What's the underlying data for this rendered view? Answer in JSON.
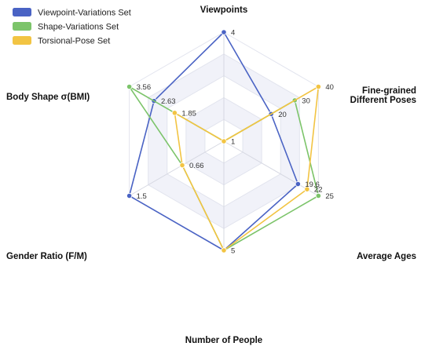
{
  "chart_data": {
    "type": "radar",
    "axes": [
      {
        "label": "Viewpoints",
        "label_lines": [
          "Viewpoints"
        ]
      },
      {
        "label": "Fine-grained Different Poses",
        "label_lines": [
          "Fine-grained",
          "Different Poses"
        ]
      },
      {
        "label": "Average Ages",
        "label_lines": [
          "Average Ages"
        ]
      },
      {
        "label": "Number of People",
        "label_lines": [
          "Number of People"
        ]
      },
      {
        "label": "Gender Ratio (F/M)",
        "label_lines": [
          "Gender Ratio (F/M)"
        ]
      },
      {
        "label": "Body Shape σ(BMI)",
        "label_lines": [
          "Body Shape σ(BMI)"
        ]
      }
    ],
    "series": [
      {
        "name": "Viewpoint-Variations Set",
        "color": "#4a63c4",
        "values": [
          1.0,
          0.5,
          0.784,
          1.0,
          1.0,
          0.739
        ],
        "labels": [
          "4",
          "20",
          "19.6",
          "5",
          "1.5",
          "2.63"
        ]
      },
      {
        "name": "Shape-Variations Set",
        "color": "#7cc46a",
        "values": [
          0.0,
          0.75,
          1.0,
          1.0,
          0.44,
          1.0
        ],
        "labels": [
          "1",
          "30",
          "25",
          "",
          "0.66",
          "3.56"
        ]
      },
      {
        "name": "Torsional-Pose Set",
        "color": "#f2c443",
        "values": [
          0.0,
          1.0,
          0.88,
          1.0,
          0.44,
          0.52
        ],
        "labels": [
          "",
          "40",
          "22",
          "",
          "",
          "1.85"
        ]
      }
    ],
    "grid_levels": 5,
    "legend_position": "top-left"
  }
}
